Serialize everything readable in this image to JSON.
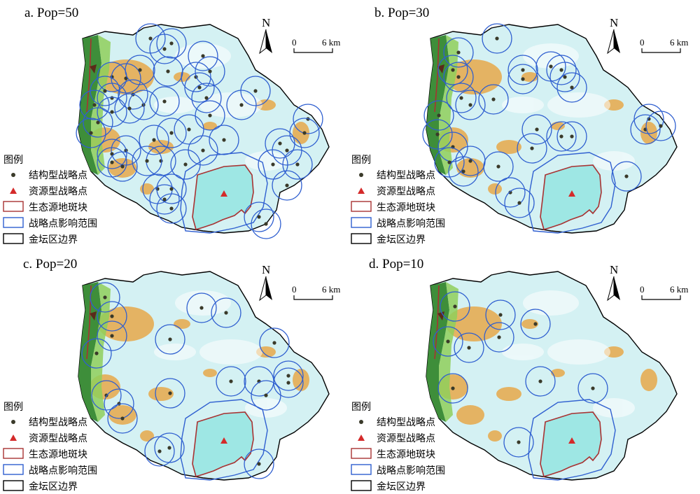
{
  "legend": {
    "heading": "图例",
    "items": [
      {
        "label": "结构型战略点",
        "symbol": "dark-dot",
        "color": "#3a3a2a"
      },
      {
        "label": "资源型战略点",
        "symbol": "red-triangle",
        "color": "#d42a2a"
      },
      {
        "label": "生态源地斑块",
        "symbol": "red-box",
        "color": "#a83232"
      },
      {
        "label": "战略点影响范围",
        "symbol": "blue-box",
        "color": "#2f5fd0"
      },
      {
        "label": "金坛区边界",
        "symbol": "black-box",
        "color": "#000000"
      }
    ]
  },
  "scale_bar": {
    "start": "0",
    "end": "6 km"
  },
  "north_arrow": {
    "letter": "N"
  },
  "panels": [
    {
      "id": "a",
      "title": "a. Pop=50",
      "structural_points": 50
    },
    {
      "id": "b",
      "title": "b. Pop=30",
      "structural_points": 30
    },
    {
      "id": "c",
      "title": "c. Pop=20",
      "structural_points": 20
    },
    {
      "id": "d",
      "title": "d. Pop=10",
      "structural_points": 10
    }
  ],
  "colors": {
    "water": "#bfeff0",
    "lake": "#9ee7e4",
    "urban": "#e9a440",
    "forest": "#3e8e3a",
    "forest_light": "#8fcf5a",
    "influence_ring": "#2f5fd0",
    "source_patch": "#a83232",
    "boundary": "#000000"
  }
}
